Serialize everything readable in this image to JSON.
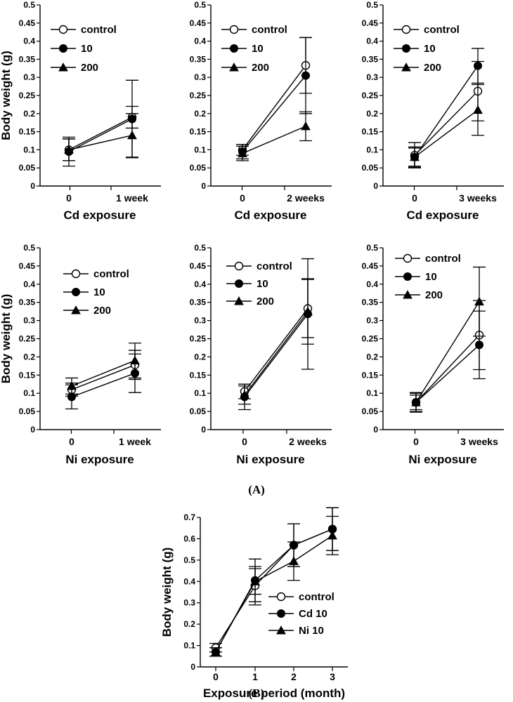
{
  "figure": {
    "panel_labels": [
      "(A)",
      "(B)"
    ]
  },
  "chart_data": [
    {
      "type": "line",
      "panel": "A",
      "title": "",
      "categories": [
        "0",
        "1 week"
      ],
      "xlabel": "Cd exposure",
      "ylabel": "Body weight (g)",
      "ylim": [
        0,
        0.5
      ],
      "yticks": [
        "0",
        "0.05",
        "0.1",
        "0.15",
        "0.2",
        "0.25",
        "0.3",
        "0.35",
        "0.4",
        "0.45",
        "0.5"
      ],
      "series": [
        {
          "name": "control",
          "marker": "open-circle",
          "values": [
            0.1,
            0.19
          ],
          "errors": [
            0.03,
            0.03
          ]
        },
        {
          "name": "10",
          "marker": "filled-circle",
          "values": [
            0.095,
            0.185
          ],
          "errors": [
            0.04,
            0.107
          ]
        },
        {
          "name": "200",
          "marker": "filled-triangle",
          "values": [
            0.1,
            0.14
          ],
          "errors": [
            0.03,
            0.06
          ]
        }
      ]
    },
    {
      "type": "line",
      "panel": "A",
      "title": "",
      "categories": [
        "0",
        "2 weeks"
      ],
      "xlabel": "Cd exposure",
      "ylabel": "",
      "ylim": [
        0,
        0.5
      ],
      "yticks": [
        "0",
        "0.05",
        "0.1",
        "0.15",
        "0.2",
        "0.25",
        "0.3",
        "0.35",
        "0.4",
        "0.45",
        "0.5"
      ],
      "series": [
        {
          "name": "control",
          "marker": "open-circle",
          "values": [
            0.1,
            0.333
          ],
          "errors": [
            0.015,
            0.077
          ]
        },
        {
          "name": "10",
          "marker": "filled-circle",
          "values": [
            0.095,
            0.305
          ],
          "errors": [
            0.02,
            0.105
          ]
        },
        {
          "name": "200",
          "marker": "filled-triangle",
          "values": [
            0.09,
            0.165
          ],
          "errors": [
            0.02,
            0.04
          ]
        }
      ]
    },
    {
      "type": "line",
      "panel": "A",
      "title": "",
      "categories": [
        "0",
        "3 weeks"
      ],
      "xlabel": "Cd exposure",
      "ylabel": "",
      "ylim": [
        0,
        0.5
      ],
      "yticks": [
        "0",
        "0.05",
        "0.1",
        "0.15",
        "0.2",
        "0.25",
        "0.3",
        "0.35",
        "0.4",
        "0.45",
        "0.5"
      ],
      "series": [
        {
          "name": "control",
          "marker": "open-circle",
          "values": [
            0.085,
            0.262
          ],
          "errors": [
            0.035,
            0.082
          ]
        },
        {
          "name": "10",
          "marker": "filled-circle",
          "values": [
            0.08,
            0.332
          ],
          "errors": [
            0.025,
            0.048
          ]
        },
        {
          "name": "200",
          "marker": "filled-triangle",
          "values": [
            0.08,
            0.21
          ],
          "errors": [
            0.028,
            0.07
          ]
        }
      ]
    },
    {
      "type": "line",
      "panel": "A",
      "title": "",
      "categories": [
        "0",
        "1 week"
      ],
      "xlabel": "Ni exposure",
      "ylabel": "Body weight (g)",
      "ylim": [
        0,
        0.5
      ],
      "yticks": [
        "0",
        "0.05",
        "0.1",
        "0.15",
        "0.2",
        "0.25",
        "0.3",
        "0.35",
        "0.4",
        "0.45",
        "0.5"
      ],
      "series": [
        {
          "name": "control",
          "marker": "open-circle",
          "values": [
            0.11,
            0.178
          ],
          "errors": [
            0.018,
            0.04
          ]
        },
        {
          "name": "10",
          "marker": "filled-circle",
          "values": [
            0.09,
            0.155
          ],
          "errors": [
            0.033,
            0.053
          ]
        },
        {
          "name": "200",
          "marker": "filled-triangle",
          "values": [
            0.12,
            0.19
          ],
          "errors": [
            0.022,
            0.048
          ]
        }
      ]
    },
    {
      "type": "line",
      "panel": "A",
      "title": "",
      "categories": [
        "0",
        "2 weeks"
      ],
      "xlabel": "Ni exposure",
      "ylabel": "",
      "ylim": [
        0,
        0.5
      ],
      "yticks": [
        "0",
        "0.05",
        "0.1",
        "0.15",
        "0.2",
        "0.25",
        "0.3",
        "0.35",
        "0.4",
        "0.45",
        "0.5"
      ],
      "series": [
        {
          "name": "control",
          "marker": "open-circle",
          "values": [
            0.105,
            0.333
          ],
          "errors": [
            0.02,
            0.08
          ]
        },
        {
          "name": "10",
          "marker": "filled-circle",
          "values": [
            0.09,
            0.318
          ],
          "errors": [
            0.035,
            0.152
          ]
        },
        {
          "name": "200",
          "marker": "filled-triangle",
          "values": [
            0.095,
            0.325
          ],
          "errors": [
            0.025,
            0.09
          ]
        }
      ]
    },
    {
      "type": "line",
      "panel": "A",
      "title": "",
      "categories": [
        "0",
        "3 weeks"
      ],
      "xlabel": "Ni exposure",
      "ylabel": "",
      "ylim": [
        0,
        0.5
      ],
      "yticks": [
        "0",
        "0.05",
        "0.1",
        "0.15",
        "0.2",
        "0.25",
        "0.3",
        "0.35",
        "0.4",
        "0.45",
        "0.5"
      ],
      "series": [
        {
          "name": "control",
          "marker": "open-circle",
          "values": [
            0.075,
            0.26
          ],
          "errors": [
            0.027,
            0.095
          ]
        },
        {
          "name": "10",
          "marker": "filled-circle",
          "values": [
            0.075,
            0.233
          ],
          "errors": [
            0.025,
            0.093
          ]
        },
        {
          "name": "200",
          "marker": "filled-triangle",
          "values": [
            0.075,
            0.352
          ],
          "errors": [
            0.02,
            0.095
          ]
        }
      ]
    },
    {
      "type": "line",
      "panel": "B",
      "title": "",
      "categories": [
        "0",
        "1",
        "2",
        "3"
      ],
      "xlabel": "Exposure period (month)",
      "ylabel": "Body weight (g)",
      "ylim": [
        0,
        0.7
      ],
      "yticks": [
        "0",
        "0.1",
        "0.2",
        "0.3",
        "0.4",
        "0.5",
        "0.6",
        "0.7"
      ],
      "series": [
        {
          "name": "control",
          "marker": "open-circle",
          "values": [
            0.09,
            0.38,
            0.57,
            0.645
          ],
          "errors": [
            0.02,
            0.09,
            0.1,
            0.1
          ]
        },
        {
          "name": "Cd 10",
          "marker": "filled-circle",
          "values": [
            0.07,
            0.405,
            0.57,
            0.645
          ],
          "errors": [
            0.02,
            0.1,
            0.1,
            0.1
          ]
        },
        {
          "name": "Ni 10",
          "marker": "filled-triangle",
          "values": [
            0.07,
            0.4,
            0.495,
            0.615
          ],
          "errors": [
            0.02,
            0.06,
            0.09,
            0.09
          ]
        }
      ]
    }
  ]
}
